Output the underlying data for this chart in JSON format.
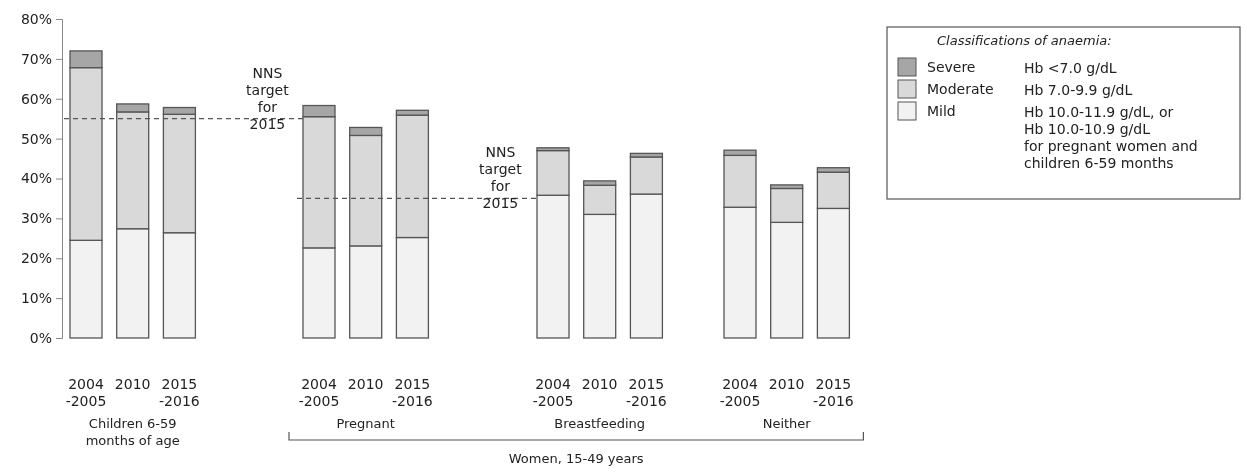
{
  "chart_data": [
    {
      "type": "bar",
      "stacked": true,
      "categories": [
        "2004\n-2005",
        "2010",
        "2015\n-2016"
      ],
      "xlabel": "Children 6-59\nmonths of age",
      "series": [
        {
          "color": "#f2f2f2",
          "values": [
            24.5,
            27.4,
            26.4
          ]
        },
        {
          "color": "#d9d9d9",
          "values": [
            43.3,
            29.3,
            29.7
          ]
        },
        {
          "color": "#a6a6a6",
          "values": [
            4.2,
            2.0,
            1.7
          ]
        }
      ],
      "ylim": [
        0,
        80
      ],
      "yticks": [
        {
          "value": 0,
          "label": "0%"
        },
        {
          "value": 10,
          "label": "10%"
        },
        {
          "value": 20,
          "label": "20%"
        },
        {
          "value": 30,
          "label": "30%"
        },
        {
          "value": 40,
          "label": "40%"
        },
        {
          "value": 50,
          "label": "50%"
        },
        {
          "value": 60,
          "label": "60%"
        },
        {
          "value": 70,
          "label": "70%"
        },
        {
          "value": 80,
          "label": "80%"
        }
      ],
      "ref_lines": [
        {
          "axis": "y",
          "value": 55,
          "label": "NNS\ntarget for\n2015",
          "line_style": "dashed",
          "color": "#555555"
        }
      ]
    },
    {
      "type": "bar",
      "stacked": true,
      "categories": [
        "2004\n-2005",
        "2010",
        "2015\n-2016"
      ],
      "xlabel": "Pregnant",
      "series": [
        {
          "color": "#f2f2f2",
          "values": [
            22.6,
            23.1,
            25.2
          ]
        },
        {
          "color": "#d9d9d9",
          "values": [
            32.9,
            27.7,
            30.7
          ]
        },
        {
          "color": "#a6a6a6",
          "values": [
            2.8,
            2.0,
            1.2
          ]
        }
      ],
      "ylim": [
        0,
        80
      ],
      "tick_labels": "x",
      "ref_lines": [
        {
          "axis": "y",
          "value": 35,
          "label": "NNS\ntarget for\n2015",
          "line_style": "dashed",
          "color": "#555555"
        }
      ]
    },
    {
      "type": "bar",
      "stacked": true,
      "categories": [
        "2004\n-2005",
        "2010",
        "2015\n-2016"
      ],
      "xlabel": "Breastfeeding",
      "series": [
        {
          "color": "#f2f2f2",
          "values": [
            35.8,
            31.0,
            36.1
          ]
        },
        {
          "color": "#d9d9d9",
          "values": [
            11.2,
            7.3,
            9.3
          ]
        },
        {
          "color": "#a6a6a6",
          "values": [
            0.7,
            1.1,
            0.9
          ]
        }
      ],
      "ylim": [
        0,
        80
      ],
      "tick_labels": "x",
      "annotations": [
        "Women, 15-49 years"
      ]
    },
    {
      "type": "bar",
      "stacked": true,
      "categories": [
        "2004\n-2005",
        "2010",
        "2015\n-2016"
      ],
      "xlabel": "Neither",
      "series": [
        {
          "name": "Mild",
          "color": "#f2f2f2",
          "values": [
            32.8,
            29.0,
            32.5
          ]
        },
        {
          "name": "Moderate",
          "color": "#d9d9d9",
          "values": [
            13.0,
            8.5,
            9.1
          ]
        },
        {
          "name": "Severe",
          "color": "#a6a6a6",
          "values": [
            1.3,
            0.9,
            1.1
          ]
        }
      ],
      "ylim": [
        0,
        80
      ],
      "tick_labels": "x",
      "legend": "right",
      "legend_title": "Classifications of anaemia:",
      "annotations": [
        "Hb <7.0 g/dL",
        "Hb 7.0-9.9 g/dL",
        "Hb 10.0-11.9 g/dL, or\nHb 10.0-10.9 g/dL\nfor pregnant women and\nchildren 6-59 months"
      ]
    }
  ]
}
